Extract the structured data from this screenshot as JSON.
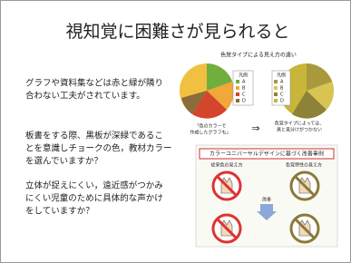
{
  "slide": {
    "title": "視知覚に困難さが見られると",
    "paragraphs": [
      [
        "グラフや資料集などは赤と緑が隣り",
        "合わない工夫がされています。"
      ],
      [
        "板書をする際、黒板が深緑であるこ",
        "とを意識しチョークの色，教材カラー",
        "を選んでいますか？"
      ],
      [
        "立体が捉えにくい，遠近感がつかみ",
        "にくい児童のために具体的な声かけ",
        "をしていますか？"
      ]
    ],
    "chart_image": {
      "title": "色覚タイプによる見え方の違い",
      "legend_title": "凡例",
      "legend_items": [
        "A",
        "B",
        "C",
        "D"
      ],
      "left_caption": [
        "「色のカラーで",
        "作成したグラフも」"
      ],
      "arrow": "⇒",
      "right_caption": [
        "色覚タイプによっては、",
        "黒と見分けがつかない"
      ]
    },
    "cud_image": {
      "heading": "カラーユニバーサルデザインに基づく改善事例",
      "labels": [
        "従来色の見え方",
        "色覚特性の見え方"
      ],
      "middle": "改善"
    }
  }
}
